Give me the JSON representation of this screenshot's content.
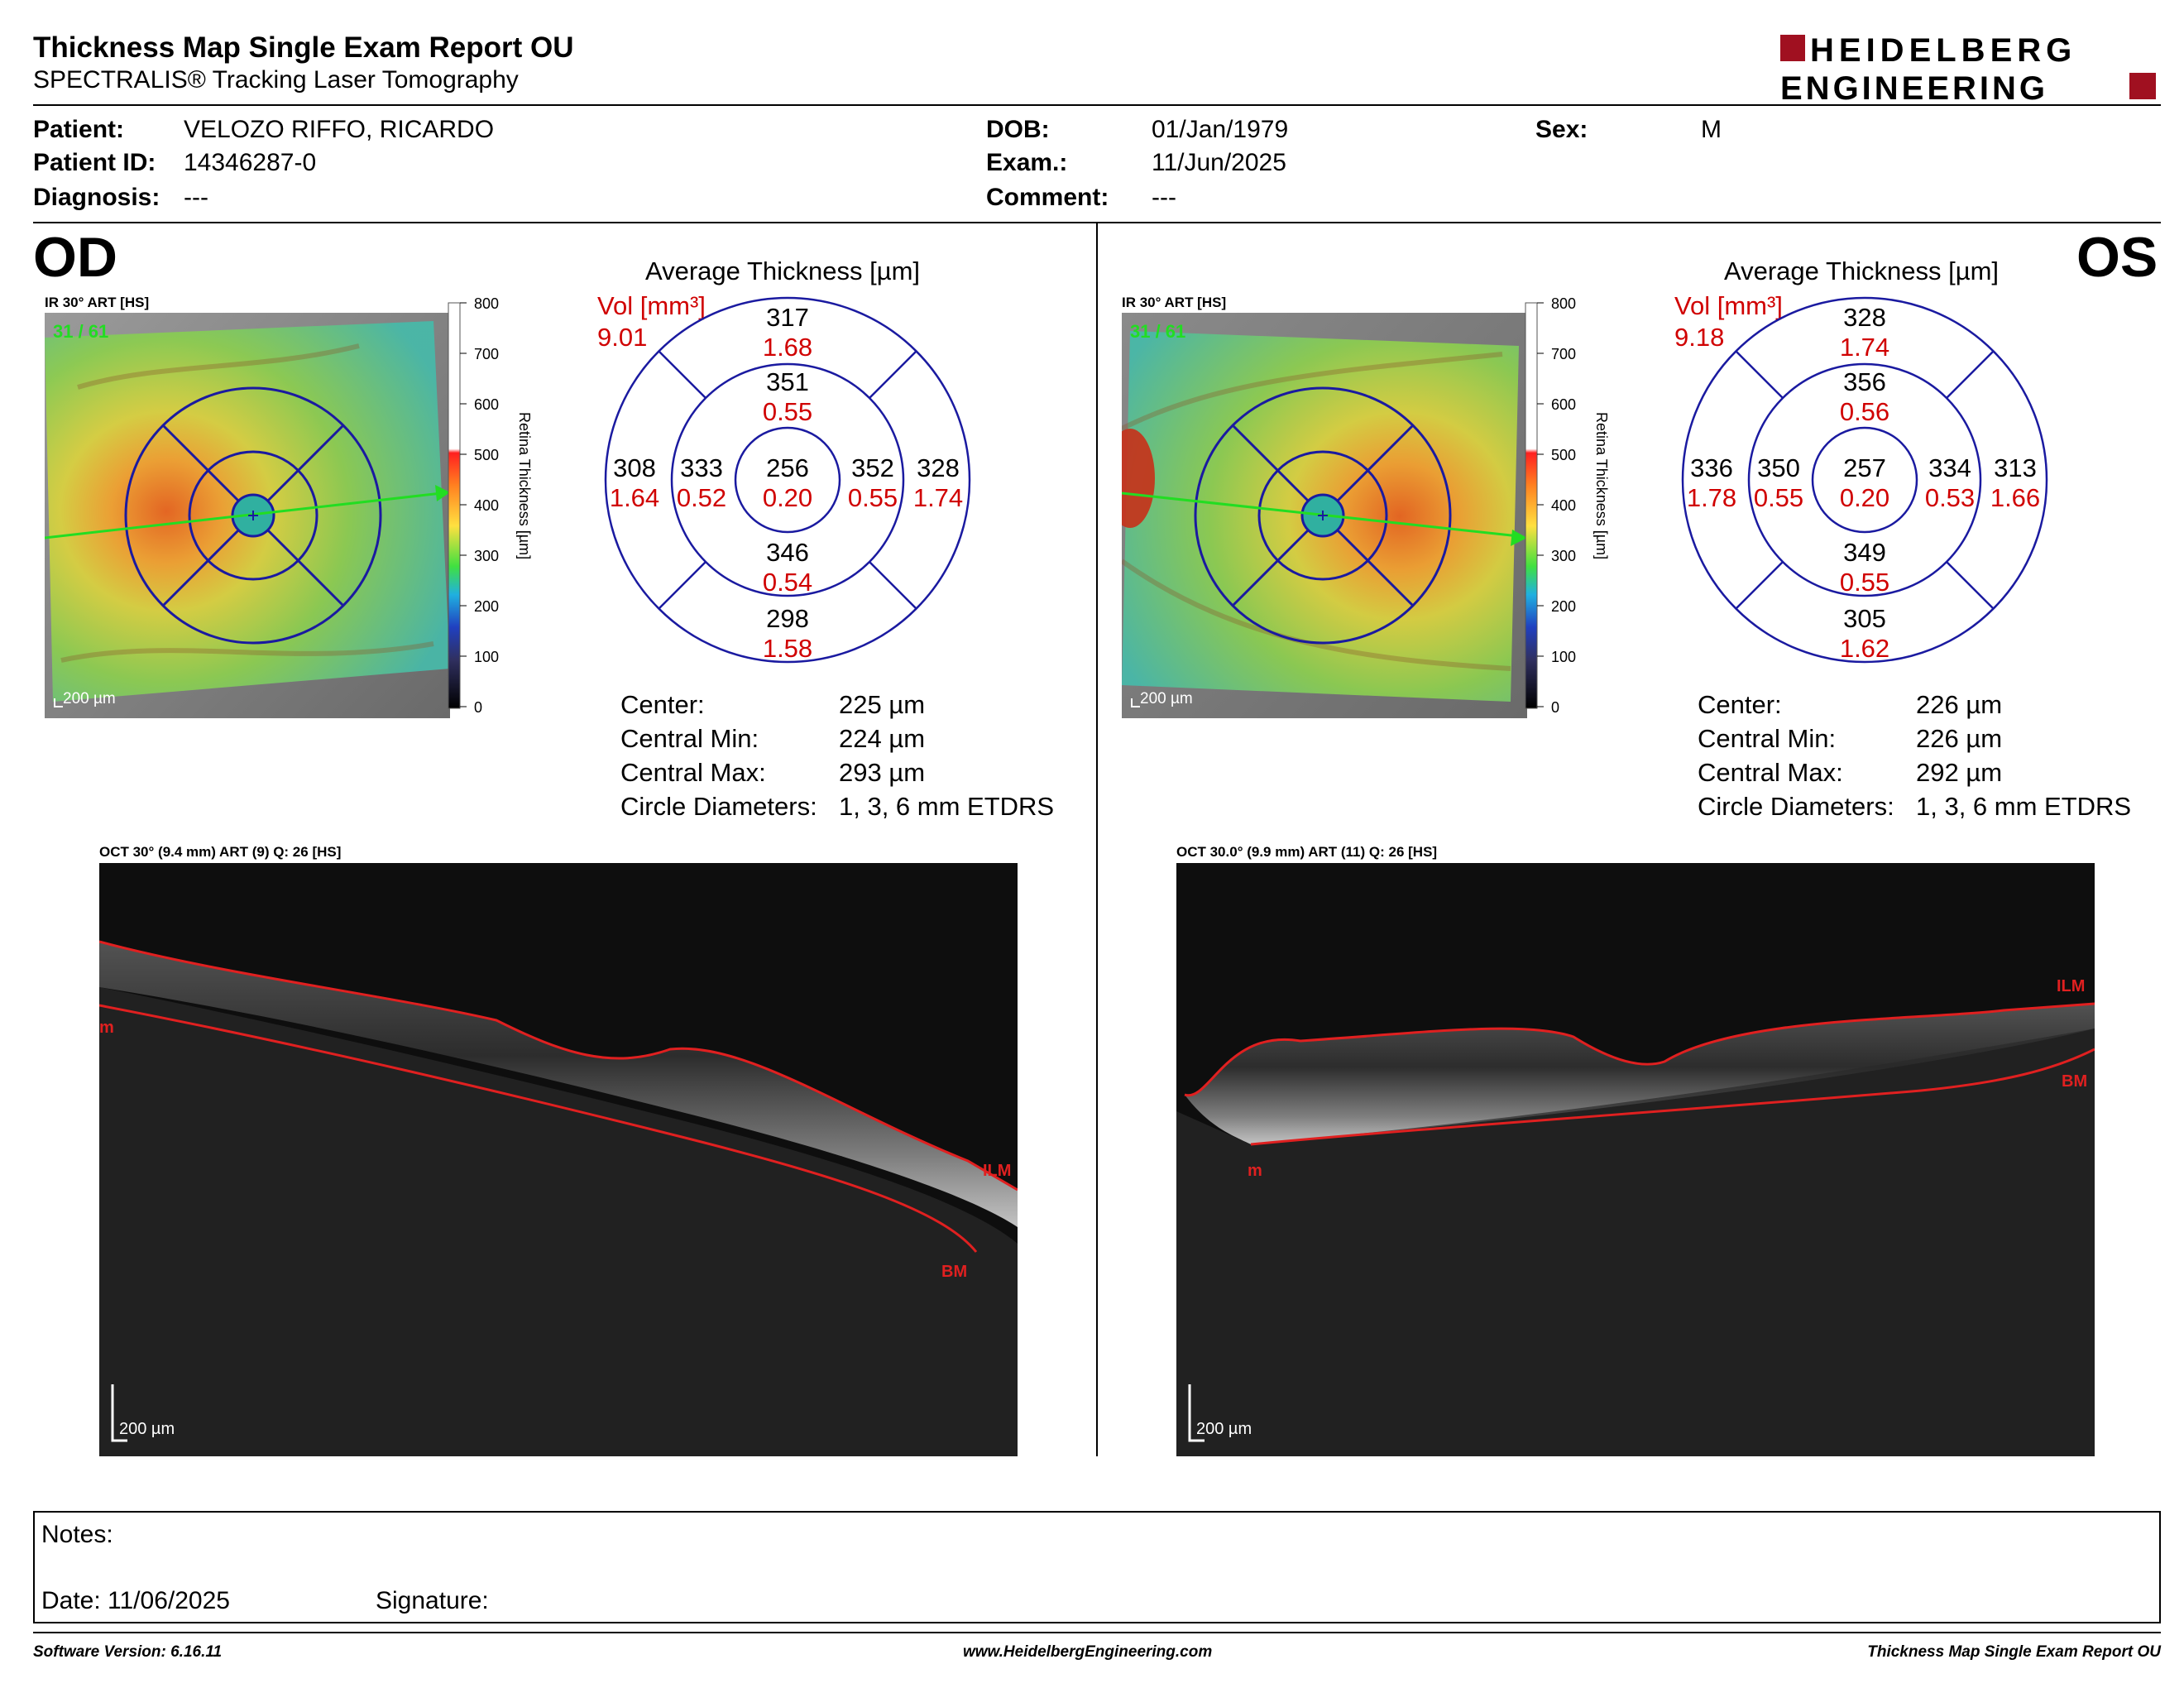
{
  "report": {
    "title": "Thickness Map Single Exam Report OU",
    "subtitle": "SPECTRALIS® Tracking Laser Tomography",
    "logo_line1": "HEIDELBERG",
    "logo_line2": "ENGINEERING"
  },
  "patient": {
    "patient_label": "Patient:",
    "patient_value": "VELOZO RIFFO, RICARDO",
    "id_label": "Patient ID:",
    "id_value": "14346287-0",
    "diagnosis_label": "Diagnosis:",
    "diagnosis_value": "---",
    "dob_label": "DOB:",
    "dob_value": "01/Jan/1979",
    "exam_label": "Exam.:",
    "exam_value": "11/Jun/2025",
    "comment_label": "Comment:",
    "comment_value": "---",
    "sex_label": "Sex:",
    "sex_value": "M"
  },
  "od": {
    "eye_label": "OD",
    "ir_label": "IR 30° ART [HS]",
    "frame_label": "31 / 61",
    "scale_label": "200 µm",
    "colorbar_ticks": [
      "800",
      "700",
      "600",
      "500",
      "400",
      "300",
      "200",
      "100",
      "0"
    ],
    "colorbar_title": "Retina Thickness [µm]",
    "avg_title": "Average Thickness [µm]",
    "vol_label": "Vol [mm³]",
    "vol_value": "9.01",
    "sectors": {
      "outer_top": {
        "t": "317",
        "v": "1.68"
      },
      "inner_top": {
        "t": "351",
        "v": "0.55"
      },
      "outer_left": {
        "t": "308",
        "v": "1.64"
      },
      "inner_left": {
        "t": "333",
        "v": "0.52"
      },
      "center": {
        "t": "256",
        "v": "0.20"
      },
      "inner_right": {
        "t": "352",
        "v": "0.55"
      },
      "outer_right": {
        "t": "328",
        "v": "1.74"
      },
      "inner_bottom": {
        "t": "346",
        "v": "0.54"
      },
      "outer_bottom": {
        "t": "298",
        "v": "1.58"
      }
    },
    "stats": [
      {
        "label": "Center:",
        "value": "225 µm"
      },
      {
        "label": "Central Min:",
        "value": "224 µm"
      },
      {
        "label": "Central Max:",
        "value": "293 µm"
      },
      {
        "label": "Circle Diameters:",
        "value": "1, 3, 6 mm ETDRS"
      }
    ],
    "oct_label": "OCT 30° (9.4 mm) ART (9) Q: 26 [HS]",
    "oct_scale": "200 µm",
    "ilm": "ILM",
    "bm": "BM",
    "m": "m"
  },
  "os": {
    "eye_label": "OS",
    "ir_label": "IR 30° ART [HS]",
    "frame_label": "31 / 61",
    "scale_label": "200 µm",
    "colorbar_ticks": [
      "800",
      "700",
      "600",
      "500",
      "400",
      "300",
      "200",
      "100",
      "0"
    ],
    "colorbar_title": "Retina Thickness [µm]",
    "avg_title": "Average Thickness [µm]",
    "vol_label": "Vol [mm³]",
    "vol_value": "9.18",
    "sectors": {
      "outer_top": {
        "t": "328",
        "v": "1.74"
      },
      "inner_top": {
        "t": "356",
        "v": "0.56"
      },
      "outer_left": {
        "t": "336",
        "v": "1.78"
      },
      "inner_left": {
        "t": "350",
        "v": "0.55"
      },
      "center": {
        "t": "257",
        "v": "0.20"
      },
      "inner_right": {
        "t": "334",
        "v": "0.53"
      },
      "outer_right": {
        "t": "313",
        "v": "1.66"
      },
      "inner_bottom": {
        "t": "349",
        "v": "0.55"
      },
      "outer_bottom": {
        "t": "305",
        "v": "1.62"
      }
    },
    "stats": [
      {
        "label": "Center:",
        "value": "226 µm"
      },
      {
        "label": "Central Min:",
        "value": "226 µm"
      },
      {
        "label": "Central Max:",
        "value": "292 µm"
      },
      {
        "label": "Circle Diameters:",
        "value": "1, 3, 6 mm ETDRS"
      }
    ],
    "oct_label": "OCT 30.0° (9.9 mm) ART (11) Q: 26 [HS]",
    "oct_scale": "200 µm",
    "ilm": "ILM",
    "bm": "BM",
    "m": "m"
  },
  "notes": {
    "notes_label": "Notes:",
    "date_label": "Date: 11/06/2025",
    "signature_label": "Signature:"
  },
  "footer": {
    "software": "Software Version: 6.16.11",
    "website": "www.HeidelbergEngineering.com",
    "report_name": "Thickness Map Single Exam Report OU"
  },
  "colors": {
    "accent_red": "#d00000",
    "logo_red": "#a01020",
    "grid_blue": "#1a1aa0"
  }
}
